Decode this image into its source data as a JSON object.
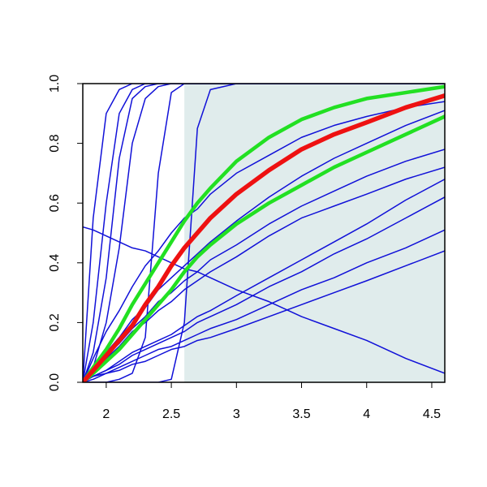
{
  "chart_data": {
    "type": "line",
    "x": [
      1.82,
      1.9,
      2.0,
      2.1,
      2.2,
      2.3,
      2.4,
      2.5,
      2.6,
      2.7,
      2.8,
      3.0,
      3.25,
      3.5,
      3.75,
      4.0,
      4.3,
      4.6
    ],
    "xlim": [
      1.82,
      4.6
    ],
    "ylim": [
      0,
      1
    ],
    "xticks": [
      2.0,
      2.5,
      3.0,
      3.5,
      4.0,
      4.5
    ],
    "yticks": [
      {
        "value": 0,
        "label": "0.0"
      },
      0.2,
      0.4,
      0.6,
      0.8,
      {
        "value": 1,
        "label": "1.0"
      }
    ],
    "shaded_region": {
      "xlim": [
        2.6,
        4.6
      ],
      "color": "#e0ecec"
    },
    "series": [
      {
        "color": "#1010d8",
        "line_width": 1.5,
        "values": [
          0,
          0.55,
          0.9,
          0.98,
          1,
          1,
          1,
          1,
          1,
          1,
          1,
          1,
          1,
          1,
          1,
          1,
          1,
          1
        ]
      },
      {
        "color": "#1010d8",
        "line_width": 1.5,
        "values": [
          0,
          0.2,
          0.6,
          0.9,
          0.98,
          1,
          1,
          1,
          1,
          1,
          1,
          1,
          1,
          1,
          1,
          1,
          1,
          1
        ]
      },
      {
        "color": "#1010d8",
        "line_width": 1.5,
        "values": [
          0,
          0.1,
          0.35,
          0.75,
          0.95,
          0.99,
          1,
          1,
          1,
          1,
          1,
          1,
          1,
          1,
          1,
          1,
          1,
          1
        ]
      },
      {
        "color": "#1010d8",
        "line_width": 1.5,
        "values": [
          0,
          0.05,
          0.2,
          0.45,
          0.8,
          0.95,
          0.99,
          1,
          1,
          1,
          1,
          1,
          1,
          1,
          1,
          1,
          1,
          1
        ]
      },
      {
        "color": "#1010d8",
        "line_width": 1.5,
        "values": [
          0,
          0,
          0,
          0.01,
          0.03,
          0.15,
          0.7,
          0.97,
          1,
          1,
          1,
          1,
          1,
          1,
          1,
          1,
          1,
          1
        ]
      },
      {
        "color": "#1010d8",
        "line_width": 1.5,
        "values": [
          0,
          0,
          0,
          0,
          0,
          0,
          0,
          0.01,
          0.2,
          0.85,
          0.98,
          1,
          1,
          1,
          1,
          1,
          1,
          1
        ]
      },
      {
        "color": "#1010d8",
        "line_width": 1.5,
        "values": [
          0,
          0.08,
          0.17,
          0.24,
          0.32,
          0.39,
          0.44,
          0.5,
          0.55,
          0.58,
          0.63,
          0.7,
          0.76,
          0.82,
          0.86,
          0.89,
          0.92,
          0.94
        ]
      },
      {
        "color": "#1010d8",
        "line_width": 1.5,
        "values": [
          0,
          0.05,
          0.1,
          0.15,
          0.21,
          0.25,
          0.31,
          0.35,
          0.39,
          0.43,
          0.47,
          0.54,
          0.62,
          0.69,
          0.75,
          0.8,
          0.86,
          0.91
        ]
      },
      {
        "color": "#1010d8",
        "line_width": 1.5,
        "values": [
          0,
          0.04,
          0.09,
          0.13,
          0.18,
          0.22,
          0.27,
          0.3,
          0.34,
          0.37,
          0.41,
          0.46,
          0.53,
          0.59,
          0.64,
          0.69,
          0.74,
          0.78
        ]
      },
      {
        "color": "#1010d8",
        "line_width": 1.5,
        "values": [
          0,
          0.04,
          0.08,
          0.12,
          0.17,
          0.2,
          0.24,
          0.27,
          0.31,
          0.34,
          0.37,
          0.42,
          0.49,
          0.55,
          0.59,
          0.63,
          0.68,
          0.72
        ]
      },
      {
        "color": "#1010d8",
        "line_width": 1.5,
        "values": [
          0,
          0.02,
          0.04,
          0.07,
          0.1,
          0.12,
          0.14,
          0.16,
          0.19,
          0.22,
          0.24,
          0.29,
          0.35,
          0.41,
          0.47,
          0.53,
          0.61,
          0.68
        ]
      },
      {
        "color": "#1010d8",
        "line_width": 1.5,
        "values": [
          0,
          0.02,
          0.04,
          0.06,
          0.09,
          0.11,
          0.13,
          0.15,
          0.17,
          0.2,
          0.22,
          0.26,
          0.32,
          0.37,
          0.43,
          0.48,
          0.55,
          0.62
        ]
      },
      {
        "color": "#1010d8",
        "line_width": 1.5,
        "values": [
          0,
          0.02,
          0.03,
          0.05,
          0.07,
          0.09,
          0.11,
          0.12,
          0.14,
          0.16,
          0.18,
          0.21,
          0.26,
          0.31,
          0.35,
          0.4,
          0.45,
          0.51
        ]
      },
      {
        "color": "#1010d8",
        "line_width": 1.5,
        "values": [
          0,
          0.01,
          0.03,
          0.04,
          0.06,
          0.07,
          0.09,
          0.11,
          0.12,
          0.14,
          0.15,
          0.18,
          0.22,
          0.26,
          0.3,
          0.34,
          0.39,
          0.44
        ]
      },
      {
        "color": "#1010d8",
        "line_width": 1.5,
        "values": [
          0.52,
          0.51,
          0.49,
          0.47,
          0.45,
          0.44,
          0.42,
          0.4,
          0.38,
          0.37,
          0.35,
          0.31,
          0.27,
          0.22,
          0.18,
          0.14,
          0.08,
          0.03
        ]
      },
      {
        "color": "#22e022",
        "line_width": 4.5,
        "values": [
          0,
          0.05,
          0.11,
          0.18,
          0.26,
          0.33,
          0.4,
          0.47,
          0.54,
          0.6,
          0.65,
          0.74,
          0.82,
          0.88,
          0.92,
          0.95,
          0.97,
          0.99
        ]
      },
      {
        "color": "#22e022",
        "line_width": 4.5,
        "values": [
          0,
          0.03,
          0.07,
          0.11,
          0.16,
          0.21,
          0.26,
          0.31,
          0.37,
          0.42,
          0.46,
          0.53,
          0.6,
          0.66,
          0.72,
          0.77,
          0.83,
          0.89
        ]
      },
      {
        "color": "#ee1111",
        "line_width": 5.5,
        "values": [
          0,
          0.04,
          0.09,
          0.14,
          0.19,
          0.26,
          0.32,
          0.39,
          0.45,
          0.5,
          0.55,
          0.63,
          0.71,
          0.78,
          0.83,
          0.87,
          0.92,
          0.96
        ]
      }
    ]
  }
}
